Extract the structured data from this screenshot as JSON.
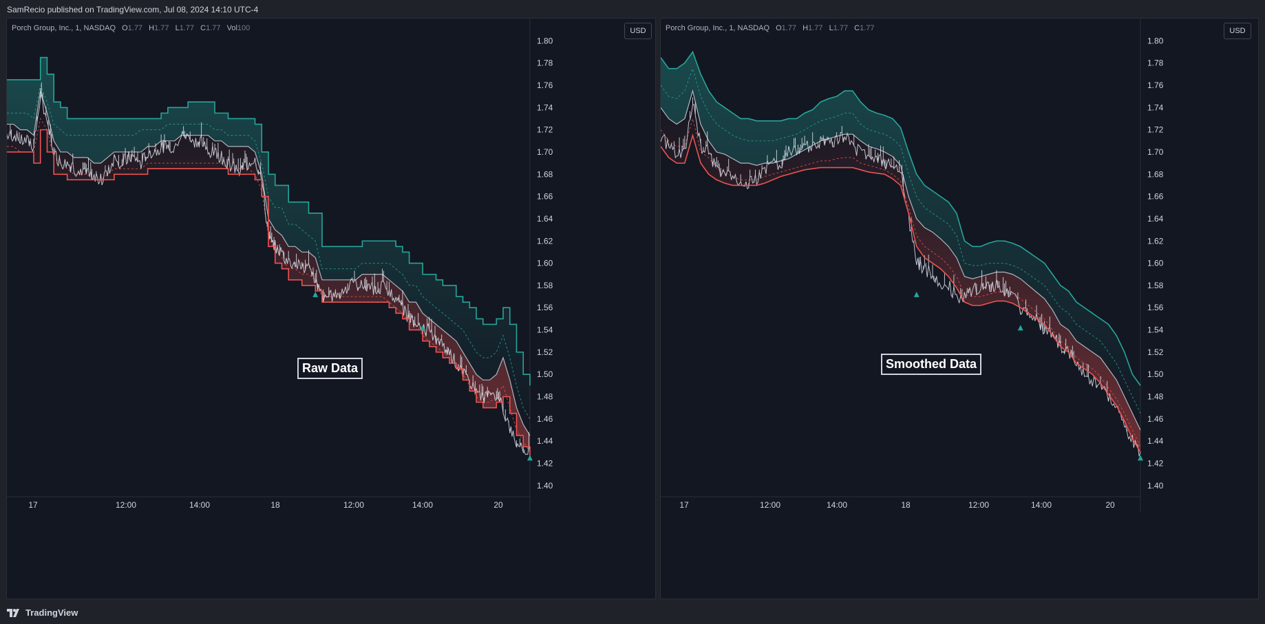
{
  "header": {
    "published_text": "SamRecio published on TradingView.com, Jul 08, 2024 14:10 UTC-4"
  },
  "footer": {
    "brand": "TradingView"
  },
  "colors": {
    "background": "#131722",
    "frame": "#1f2229",
    "upper_band": "#26a69a",
    "lower_band": "#ef5350",
    "midline": "#b2b5be",
    "price": "#e0e3eb"
  },
  "panes": [
    {
      "legend": {
        "symbol": "Porch Group, Inc., 1, NASDAQ",
        "o_label": "O",
        "o_value": "1.77",
        "h_label": "H",
        "h_value": "1.77",
        "l_label": "L",
        "l_value": "1.77",
        "c_label": "C",
        "c_value": "1.77",
        "vol_label": "Vol",
        "vol_value": "100"
      },
      "currency": "USD",
      "annotation": "Raw Data"
    },
    {
      "legend": {
        "symbol": "Porch Group, Inc., 1, NASDAQ",
        "o_label": "O",
        "o_value": "1.77",
        "h_label": "H",
        "h_value": "1.77",
        "l_label": "L",
        "l_value": "1.77",
        "c_label": "C",
        "c_value": "1.77"
      },
      "currency": "USD",
      "annotation": "Smoothed Data"
    }
  ],
  "chart_data": [
    {
      "type": "line",
      "title": "Porch Group, Inc., 1, NASDAQ — Raw Data",
      "ylim": [
        1.39,
        1.82
      ],
      "y_ticks": [
        "1.80",
        "1.78",
        "1.76",
        "1.74",
        "1.72",
        "1.70",
        "1.68",
        "1.66",
        "1.64",
        "1.62",
        "1.60",
        "1.58",
        "1.56",
        "1.54",
        "1.52",
        "1.50",
        "1.48",
        "1.46",
        "1.44",
        "1.42",
        "1.40"
      ],
      "x_ticks": [
        "17",
        "12:00",
        "14:00",
        "18",
        "12:00",
        "14:00",
        "20"
      ],
      "series": [
        {
          "name": "upper",
          "step": true,
          "values": [
            1.765,
            1.765,
            1.765,
            1.765,
            1.765,
            1.785,
            1.77,
            1.745,
            1.74,
            1.73,
            1.73,
            1.73,
            1.73,
            1.73,
            1.73,
            1.73,
            1.73,
            1.73,
            1.73,
            1.73,
            1.73,
            1.73,
            1.73,
            1.735,
            1.74,
            1.74,
            1.74,
            1.745,
            1.745,
            1.745,
            1.745,
            1.735,
            1.735,
            1.73,
            1.73,
            1.73,
            1.73,
            1.725,
            1.7,
            1.68,
            1.67,
            1.67,
            1.655,
            1.655,
            1.655,
            1.645,
            1.645,
            1.615,
            1.615,
            1.615,
            1.615,
            1.615,
            1.615,
            1.62,
            1.62,
            1.62,
            1.62,
            1.62,
            1.615,
            1.61,
            1.6,
            1.6,
            1.59,
            1.59,
            1.585,
            1.58,
            1.58,
            1.57,
            1.565,
            1.56,
            1.55,
            1.545,
            1.545,
            1.55,
            1.56,
            1.545,
            1.52,
            1.5,
            1.49
          ]
        },
        {
          "name": "upper-dashed",
          "dashed": true,
          "values": [
            1.735,
            1.735,
            1.735,
            1.735,
            1.73,
            1.76,
            1.745,
            1.725,
            1.72,
            1.715,
            1.715,
            1.715,
            1.715,
            1.715,
            1.715,
            1.715,
            1.715,
            1.715,
            1.715,
            1.715,
            1.72,
            1.72,
            1.72,
            1.72,
            1.725,
            1.725,
            1.725,
            1.725,
            1.725,
            1.725,
            1.725,
            1.72,
            1.72,
            1.715,
            1.715,
            1.715,
            1.715,
            1.71,
            1.69,
            1.66,
            1.65,
            1.65,
            1.635,
            1.635,
            1.63,
            1.625,
            1.62,
            1.595,
            1.595,
            1.595,
            1.595,
            1.595,
            1.595,
            1.6,
            1.6,
            1.6,
            1.6,
            1.6,
            1.595,
            1.59,
            1.58,
            1.58,
            1.57,
            1.565,
            1.56,
            1.555,
            1.55,
            1.545,
            1.54,
            1.53,
            1.52,
            1.515,
            1.515,
            1.52,
            1.535,
            1.515,
            1.49,
            1.47,
            1.46
          ]
        },
        {
          "name": "mid",
          "values": [
            1.725,
            1.725,
            1.72,
            1.72,
            1.715,
            1.755,
            1.735,
            1.71,
            1.7,
            1.7,
            1.695,
            1.695,
            1.695,
            1.69,
            1.69,
            1.695,
            1.7,
            1.7,
            1.7,
            1.7,
            1.7,
            1.705,
            1.705,
            1.71,
            1.71,
            1.71,
            1.715,
            1.715,
            1.715,
            1.715,
            1.715,
            1.71,
            1.71,
            1.705,
            1.705,
            1.705,
            1.705,
            1.7,
            1.68,
            1.64,
            1.63,
            1.625,
            1.615,
            1.615,
            1.61,
            1.61,
            1.605,
            1.585,
            1.585,
            1.585,
            1.585,
            1.585,
            1.585,
            1.59,
            1.59,
            1.59,
            1.59,
            1.585,
            1.58,
            1.575,
            1.565,
            1.565,
            1.555,
            1.55,
            1.545,
            1.54,
            1.535,
            1.53,
            1.52,
            1.51,
            1.5,
            1.495,
            1.495,
            1.5,
            1.515,
            1.495,
            1.47,
            1.455,
            1.445
          ]
        },
        {
          "name": "lower-dashed",
          "dashed": true,
          "values": [
            1.705,
            1.705,
            1.7,
            1.7,
            1.7,
            1.73,
            1.72,
            1.695,
            1.69,
            1.685,
            1.68,
            1.68,
            1.68,
            1.675,
            1.675,
            1.68,
            1.685,
            1.685,
            1.685,
            1.685,
            1.685,
            1.69,
            1.69,
            1.69,
            1.69,
            1.69,
            1.69,
            1.69,
            1.69,
            1.69,
            1.69,
            1.69,
            1.69,
            1.685,
            1.685,
            1.685,
            1.685,
            1.68,
            1.665,
            1.625,
            1.61,
            1.605,
            1.595,
            1.595,
            1.59,
            1.59,
            1.585,
            1.57,
            1.57,
            1.57,
            1.57,
            1.57,
            1.57,
            1.57,
            1.57,
            1.57,
            1.57,
            1.565,
            1.56,
            1.555,
            1.545,
            1.545,
            1.535,
            1.53,
            1.525,
            1.52,
            1.515,
            1.51,
            1.5,
            1.49,
            1.48,
            1.475,
            1.475,
            1.48,
            1.49,
            1.47,
            1.45,
            1.44,
            1.43
          ]
        },
        {
          "name": "lower",
          "step": true,
          "values": [
            1.7,
            1.7,
            1.7,
            1.7,
            1.69,
            1.72,
            1.7,
            1.68,
            1.68,
            1.675,
            1.675,
            1.675,
            1.675,
            1.675,
            1.675,
            1.675,
            1.68,
            1.68,
            1.68,
            1.68,
            1.68,
            1.685,
            1.685,
            1.685,
            1.685,
            1.685,
            1.685,
            1.685,
            1.685,
            1.685,
            1.685,
            1.685,
            1.685,
            1.68,
            1.68,
            1.68,
            1.68,
            1.675,
            1.66,
            1.615,
            1.6,
            1.595,
            1.585,
            1.585,
            1.58,
            1.58,
            1.575,
            1.565,
            1.565,
            1.565,
            1.565,
            1.565,
            1.565,
            1.565,
            1.565,
            1.565,
            1.565,
            1.56,
            1.555,
            1.55,
            1.54,
            1.54,
            1.53,
            1.525,
            1.52,
            1.515,
            1.51,
            1.505,
            1.495,
            1.485,
            1.475,
            1.47,
            1.47,
            1.475,
            1.48,
            1.465,
            1.445,
            1.435,
            1.425
          ]
        },
        {
          "name": "price",
          "noisy": true,
          "values": [
            1.715,
            1.715,
            1.71,
            1.71,
            1.705,
            1.75,
            1.73,
            1.7,
            1.69,
            1.69,
            1.685,
            1.68,
            1.68,
            1.675,
            1.675,
            1.68,
            1.695,
            1.69,
            1.695,
            1.695,
            1.69,
            1.7,
            1.7,
            1.705,
            1.705,
            1.705,
            1.715,
            1.715,
            1.71,
            1.71,
            1.7,
            1.7,
            1.695,
            1.69,
            1.685,
            1.685,
            1.69,
            1.695,
            1.675,
            1.625,
            1.615,
            1.61,
            1.6,
            1.6,
            1.595,
            1.595,
            1.585,
            1.57,
            1.57,
            1.57,
            1.575,
            1.58,
            1.58,
            1.58,
            1.58,
            1.575,
            1.58,
            1.575,
            1.565,
            1.56,
            1.55,
            1.545,
            1.54,
            1.54,
            1.53,
            1.525,
            1.52,
            1.51,
            1.5,
            1.495,
            1.485,
            1.48,
            1.48,
            1.48,
            1.47,
            1.45,
            1.44,
            1.435,
            1.43
          ]
        }
      ],
      "markers": [
        {
          "index": 46,
          "value": 1.572
        },
        {
          "index": 62,
          "value": 1.542
        },
        {
          "index": 78,
          "value": 1.425
        }
      ]
    },
    {
      "type": "line",
      "title": "Porch Group, Inc., 1, NASDAQ — Smoothed Data",
      "ylim": [
        1.39,
        1.82
      ],
      "y_ticks": [
        "1.80",
        "1.78",
        "1.76",
        "1.74",
        "1.72",
        "1.70",
        "1.68",
        "1.66",
        "1.64",
        "1.62",
        "1.60",
        "1.58",
        "1.56",
        "1.54",
        "1.52",
        "1.50",
        "1.48",
        "1.46",
        "1.44",
        "1.42",
        "1.40"
      ],
      "x_ticks": [
        "17",
        "12:00",
        "14:00",
        "18",
        "12:00",
        "14:00",
        "20"
      ],
      "series": [
        {
          "name": "upper",
          "values": [
            1.785,
            1.775,
            1.775,
            1.78,
            1.79,
            1.77,
            1.755,
            1.745,
            1.74,
            1.735,
            1.73,
            1.73,
            1.728,
            1.728,
            1.728,
            1.728,
            1.73,
            1.73,
            1.735,
            1.738,
            1.745,
            1.748,
            1.75,
            1.755,
            1.755,
            1.745,
            1.738,
            1.735,
            1.733,
            1.73,
            1.722,
            1.7,
            1.68,
            1.67,
            1.665,
            1.66,
            1.655,
            1.645,
            1.62,
            1.615,
            1.615,
            1.618,
            1.62,
            1.62,
            1.618,
            1.615,
            1.61,
            1.605,
            1.6,
            1.59,
            1.58,
            1.575,
            1.565,
            1.56,
            1.555,
            1.55,
            1.545,
            1.535,
            1.52,
            1.5,
            1.49
          ]
        },
        {
          "name": "upper-dashed",
          "dashed": true,
          "values": [
            1.76,
            1.75,
            1.748,
            1.755,
            1.775,
            1.75,
            1.735,
            1.725,
            1.72,
            1.715,
            1.712,
            1.71,
            1.71,
            1.71,
            1.71,
            1.712,
            1.714,
            1.716,
            1.72,
            1.724,
            1.728,
            1.73,
            1.732,
            1.735,
            1.735,
            1.725,
            1.72,
            1.718,
            1.716,
            1.712,
            1.705,
            1.68,
            1.66,
            1.65,
            1.645,
            1.64,
            1.635,
            1.625,
            1.6,
            1.598,
            1.598,
            1.6,
            1.6,
            1.6,
            1.598,
            1.595,
            1.59,
            1.585,
            1.58,
            1.57,
            1.56,
            1.555,
            1.545,
            1.54,
            1.535,
            1.53,
            1.52,
            1.51,
            1.495,
            1.48,
            1.465
          ]
        },
        {
          "name": "mid",
          "values": [
            1.74,
            1.73,
            1.725,
            1.73,
            1.755,
            1.725,
            1.71,
            1.7,
            1.698,
            1.694,
            1.69,
            1.69,
            1.688,
            1.69,
            1.69,
            1.692,
            1.694,
            1.698,
            1.702,
            1.706,
            1.71,
            1.712,
            1.714,
            1.716,
            1.716,
            1.71,
            1.705,
            1.703,
            1.7,
            1.696,
            1.688,
            1.66,
            1.64,
            1.632,
            1.628,
            1.622,
            1.615,
            1.605,
            1.588,
            1.586,
            1.588,
            1.59,
            1.592,
            1.592,
            1.59,
            1.586,
            1.58,
            1.574,
            1.568,
            1.558,
            1.545,
            1.54,
            1.53,
            1.525,
            1.52,
            1.515,
            1.505,
            1.495,
            1.48,
            1.465,
            1.45
          ]
        },
        {
          "name": "lower-dashed",
          "dashed": true,
          "values": [
            1.72,
            1.71,
            1.705,
            1.705,
            1.73,
            1.7,
            1.695,
            1.685,
            1.682,
            1.678,
            1.675,
            1.675,
            1.675,
            1.678,
            1.68,
            1.682,
            1.684,
            1.686,
            1.688,
            1.69,
            1.692,
            1.692,
            1.694,
            1.695,
            1.695,
            1.69,
            1.688,
            1.686,
            1.684,
            1.68,
            1.674,
            1.65,
            1.625,
            1.615,
            1.61,
            1.605,
            1.598,
            1.588,
            1.572,
            1.57,
            1.57,
            1.572,
            1.574,
            1.574,
            1.572,
            1.568,
            1.562,
            1.556,
            1.55,
            1.54,
            1.53,
            1.525,
            1.515,
            1.51,
            1.505,
            1.498,
            1.488,
            1.478,
            1.465,
            1.45,
            1.435
          ]
        },
        {
          "name": "lower",
          "values": [
            1.705,
            1.695,
            1.69,
            1.69,
            1.715,
            1.69,
            1.68,
            1.675,
            1.672,
            1.67,
            1.67,
            1.67,
            1.67,
            1.672,
            1.675,
            1.678,
            1.68,
            1.682,
            1.684,
            1.685,
            1.686,
            1.686,
            1.686,
            1.686,
            1.686,
            1.684,
            1.682,
            1.681,
            1.68,
            1.676,
            1.67,
            1.645,
            1.615,
            1.605,
            1.6,
            1.595,
            1.588,
            1.578,
            1.565,
            1.562,
            1.562,
            1.564,
            1.566,
            1.566,
            1.564,
            1.56,
            1.555,
            1.55,
            1.545,
            1.535,
            1.525,
            1.52,
            1.51,
            1.505,
            1.5,
            1.492,
            1.482,
            1.472,
            1.458,
            1.442,
            1.43
          ]
        },
        {
          "name": "price",
          "noisy": true,
          "values": [
            1.715,
            1.705,
            1.7,
            1.7,
            1.745,
            1.705,
            1.7,
            1.685,
            1.68,
            1.675,
            1.675,
            1.672,
            1.675,
            1.685,
            1.69,
            1.69,
            1.7,
            1.7,
            1.705,
            1.705,
            1.71,
            1.71,
            1.71,
            1.715,
            1.705,
            1.7,
            1.695,
            1.695,
            1.69,
            1.69,
            1.685,
            1.64,
            1.6,
            1.595,
            1.59,
            1.58,
            1.58,
            1.57,
            1.57,
            1.575,
            1.58,
            1.58,
            1.58,
            1.575,
            1.57,
            1.56,
            1.555,
            1.55,
            1.54,
            1.535,
            1.525,
            1.52,
            1.51,
            1.5,
            1.495,
            1.49,
            1.48,
            1.47,
            1.455,
            1.44,
            1.43
          ]
        }
      ],
      "markers": [
        {
          "index": 32,
          "value": 1.572
        },
        {
          "index": 45,
          "value": 1.542
        },
        {
          "index": 60,
          "value": 1.425
        }
      ]
    }
  ]
}
